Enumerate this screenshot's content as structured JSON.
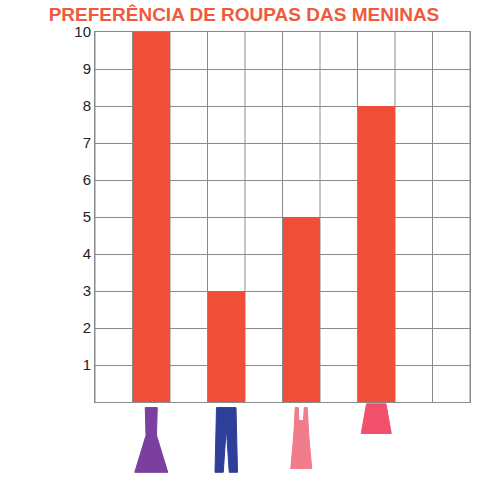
{
  "chart_data": {
    "type": "bar",
    "title": "PREFERÊNCIA DE ROUPAS DAS MENINAS",
    "categories": [
      null,
      null,
      null,
      null
    ],
    "values": [
      10,
      3,
      5,
      8
    ],
    "color": "#f04e37",
    "ylim": [
      0,
      10
    ],
    "yticks": [
      1,
      2,
      3,
      4,
      5,
      6,
      7,
      8,
      9,
      10
    ],
    "grid": true
  }
}
